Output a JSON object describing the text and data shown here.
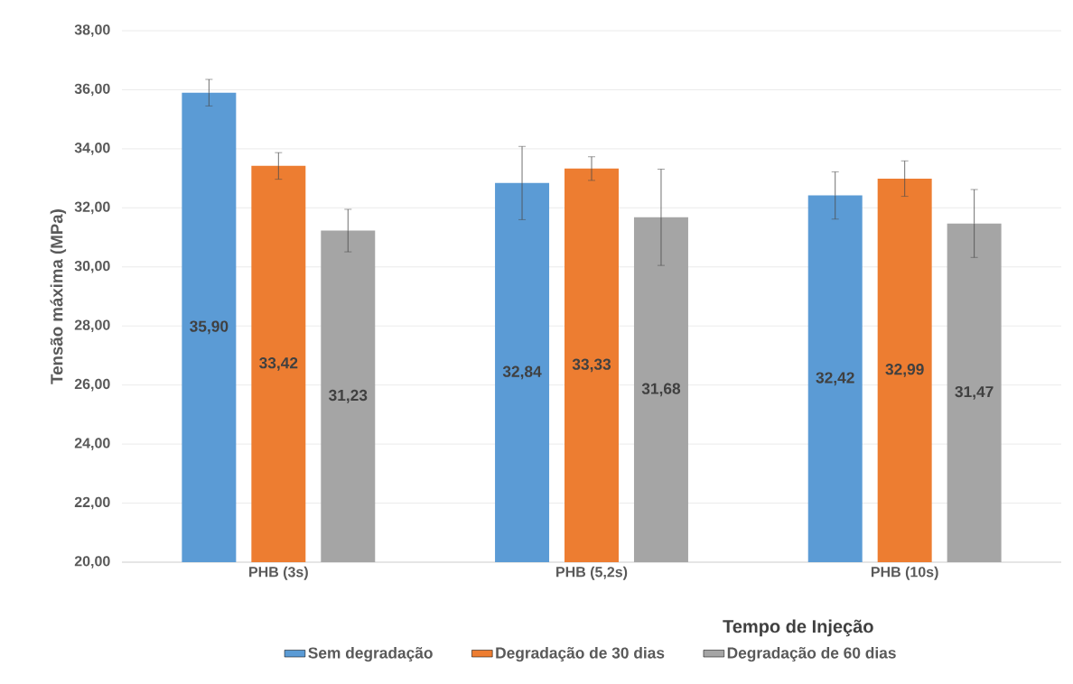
{
  "chart_data": {
    "type": "bar",
    "xlabel": "Tempo de Injeção",
    "ylabel": "Tensão máxima (MPa)",
    "categories": [
      "PHB (3s)",
      "PHB (5,2s)",
      "PHB (10s)"
    ],
    "series": [
      {
        "name": "Sem degradação",
        "color": "#5b9bd5",
        "values": [
          35.9,
          32.84,
          32.42
        ],
        "errors": [
          0.45,
          1.24,
          0.8
        ],
        "value_labels": [
          "35,90",
          "32,84",
          "32,42"
        ]
      },
      {
        "name": "Degradação de 30 dias",
        "color": "#ed7d31",
        "values": [
          33.42,
          33.33,
          32.99
        ],
        "errors": [
          0.45,
          0.4,
          0.6
        ],
        "value_labels": [
          "33,42",
          "33,33",
          "32,99"
        ]
      },
      {
        "name": "Degradação de 60 dias",
        "color": "#a5a5a5",
        "values": [
          31.23,
          31.68,
          31.47
        ],
        "errors": [
          0.72,
          1.63,
          1.15
        ],
        "value_labels": [
          "31,23",
          "31,68",
          "31,47"
        ]
      }
    ],
    "ylim": [
      20,
      38
    ],
    "yticks": [
      {
        "value": 20,
        "label": "20,00"
      },
      {
        "value": 22,
        "label": "22,00"
      },
      {
        "value": 24,
        "label": "24,00"
      },
      {
        "value": 26,
        "label": "26,00"
      },
      {
        "value": 28,
        "label": "28,00"
      },
      {
        "value": 30,
        "label": "30,00"
      },
      {
        "value": 32,
        "label": "32,00"
      },
      {
        "value": 34,
        "label": "34,00"
      },
      {
        "value": 36,
        "label": "36,00"
      },
      {
        "value": 38,
        "label": "38,00"
      }
    ],
    "grid": "y",
    "legend": "bottom"
  }
}
